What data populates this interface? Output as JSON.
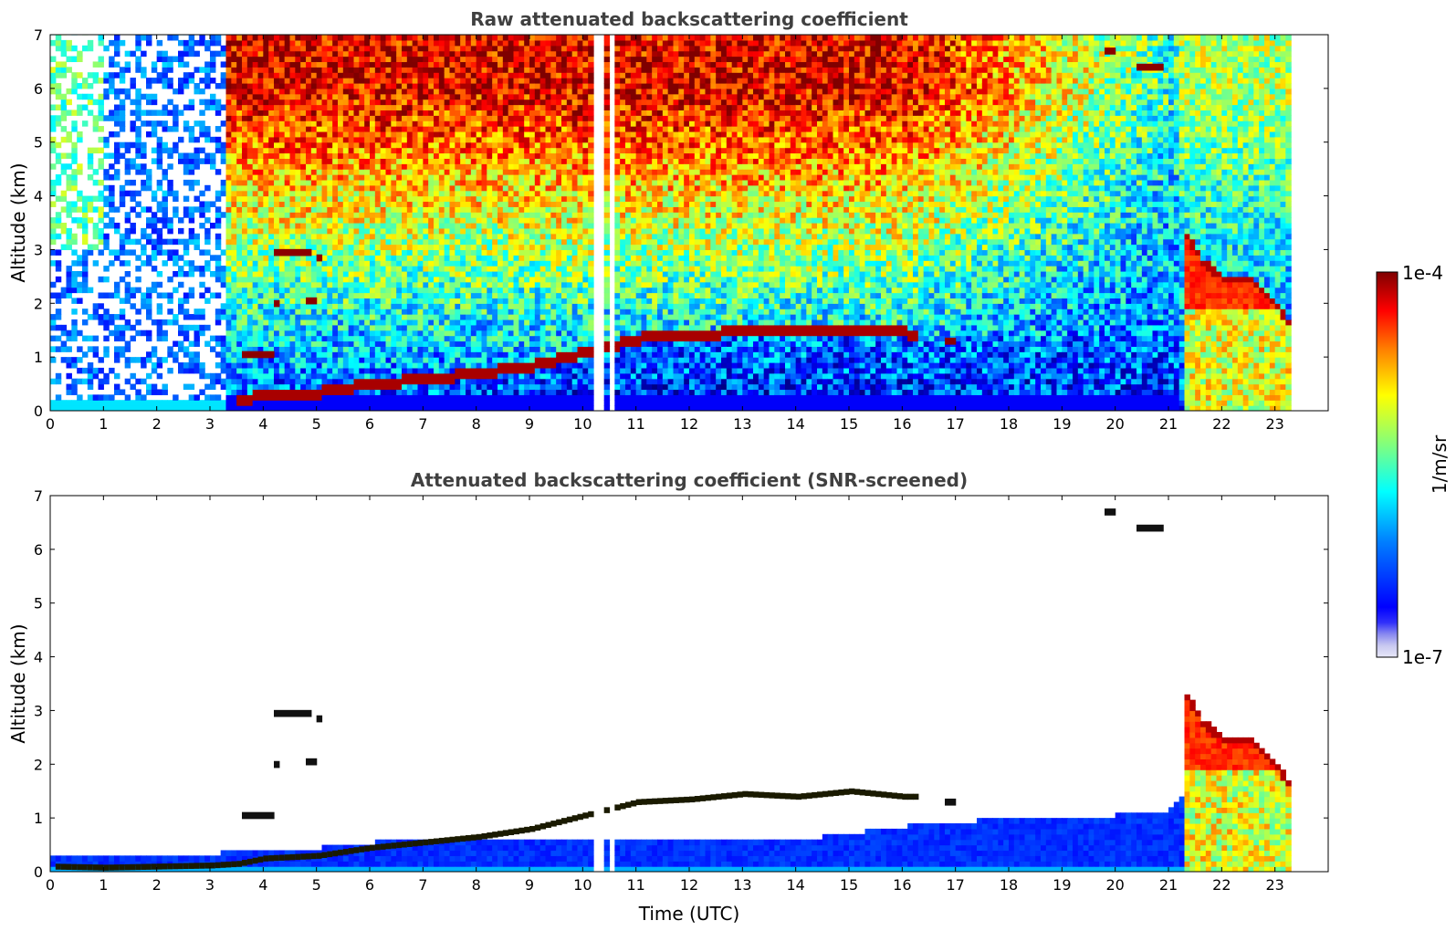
{
  "chart_data": [
    {
      "type": "heatmap",
      "title": "Raw attenuated backscattering coefficient",
      "xlabel": "",
      "ylabel": "Altitude (km)",
      "xlim": [
        0,
        24
      ],
      "ylim": [
        0,
        7
      ],
      "x_ticks": [
        "0",
        "1",
        "2",
        "3",
        "4",
        "5",
        "6",
        "7",
        "8",
        "9",
        "10",
        "11",
        "12",
        "13",
        "14",
        "15",
        "16",
        "17",
        "18",
        "19",
        "20",
        "21",
        "22",
        "23"
      ],
      "y_ticks": [
        "0",
        "1",
        "2",
        "3",
        "4",
        "5",
        "6",
        "7"
      ],
      "data_coverage_hours": [
        0,
        23.3
      ],
      "data_gaps_hours": [
        [
          10.2,
          10.35
        ],
        [
          10.48,
          10.55
        ]
      ],
      "features": {
        "boundary_layer_top_km": [
          [
            0,
            0.1
          ],
          [
            1,
            0.08
          ],
          [
            2,
            0.1
          ],
          [
            3,
            0.12
          ],
          [
            3.5,
            0.15
          ],
          [
            4,
            0.25
          ],
          [
            5,
            0.3
          ],
          [
            6,
            0.45
          ],
          [
            7,
            0.55
          ],
          [
            8,
            0.65
          ],
          [
            9,
            0.8
          ],
          [
            10,
            1.05
          ],
          [
            11,
            1.3
          ],
          [
            12,
            1.35
          ],
          [
            13,
            1.45
          ],
          [
            14,
            1.4
          ],
          [
            15,
            1.5
          ],
          [
            16,
            1.4
          ]
        ],
        "cloud_layers": [
          {
            "x": [
              3.6,
              4.2
            ],
            "y_km": 1.05
          },
          {
            "x": [
              4.2,
              4.3
            ],
            "y_km": 2.0
          },
          {
            "x": [
              4.2,
              4.9
            ],
            "y_km": 2.95
          },
          {
            "x": [
              4.8,
              5.0
            ],
            "y_km": 2.05
          },
          {
            "x": [
              5.0,
              5.1
            ],
            "y_km": 2.85
          },
          {
            "x": [
              16.8,
              17.0
            ],
            "y_km": 1.3
          },
          {
            "x": [
              19.8,
              20.0
            ],
            "y_km": 6.7
          },
          {
            "x": [
              20.4,
              20.9
            ],
            "y_km": 6.4
          }
        ],
        "precipitation_band_hours": [
          21.3,
          23.3
        ],
        "precipitation_top_km": [
          [
            21.1,
            3.1
          ],
          [
            21.3,
            3.3
          ],
          [
            21.6,
            2.8
          ],
          [
            22,
            2.5
          ],
          [
            22.5,
            2.5
          ],
          [
            23,
            2.0
          ],
          [
            23.3,
            1.5
          ]
        ]
      }
    },
    {
      "type": "heatmap",
      "title": "Attenuated backscattering coefficient (SNR-screened)",
      "xlabel": "Time (UTC)",
      "ylabel": "Altitude (km)",
      "xlim": [
        0,
        24
      ],
      "ylim": [
        0,
        7
      ],
      "x_ticks": [
        "0",
        "1",
        "2",
        "3",
        "4",
        "5",
        "6",
        "7",
        "8",
        "9",
        "10",
        "11",
        "12",
        "13",
        "14",
        "15",
        "16",
        "17",
        "18",
        "19",
        "20",
        "21",
        "22",
        "23"
      ],
      "y_ticks": [
        "0",
        "1",
        "2",
        "3",
        "4",
        "5",
        "6",
        "7"
      ],
      "screened": true,
      "signal_top_km": [
        [
          0,
          0.25
        ],
        [
          3,
          0.25
        ],
        [
          3.6,
          0.4
        ],
        [
          4,
          0.3
        ],
        [
          6,
          0.5
        ],
        [
          8,
          0.6
        ],
        [
          10,
          0.6
        ],
        [
          12,
          0.55
        ],
        [
          14,
          0.55
        ],
        [
          16,
          0.8
        ],
        [
          18,
          0.95
        ],
        [
          20,
          1.0
        ],
        [
          21,
          1.1
        ],
        [
          21.3,
          1.4
        ]
      ]
    }
  ],
  "colorbar": {
    "max_label": "1e-4",
    "min_label": "1e-7",
    "unit_label": "1/m/sr",
    "colormap": "jet",
    "scale": "log",
    "range": [
      1e-07,
      0.0001
    ]
  },
  "colors": {
    "jet_stops": [
      "#00007f",
      "#0000ff",
      "#007fff",
      "#00ffff",
      "#7fff7f",
      "#ffff00",
      "#ff7f00",
      "#ff0000",
      "#7f0000"
    ],
    "low_ticks": [
      "#e8e8f8",
      "#c8c8f0",
      "#a8a8ec",
      "#8888f0",
      "#6060f4",
      "#3030fa"
    ],
    "title": "#404040"
  }
}
